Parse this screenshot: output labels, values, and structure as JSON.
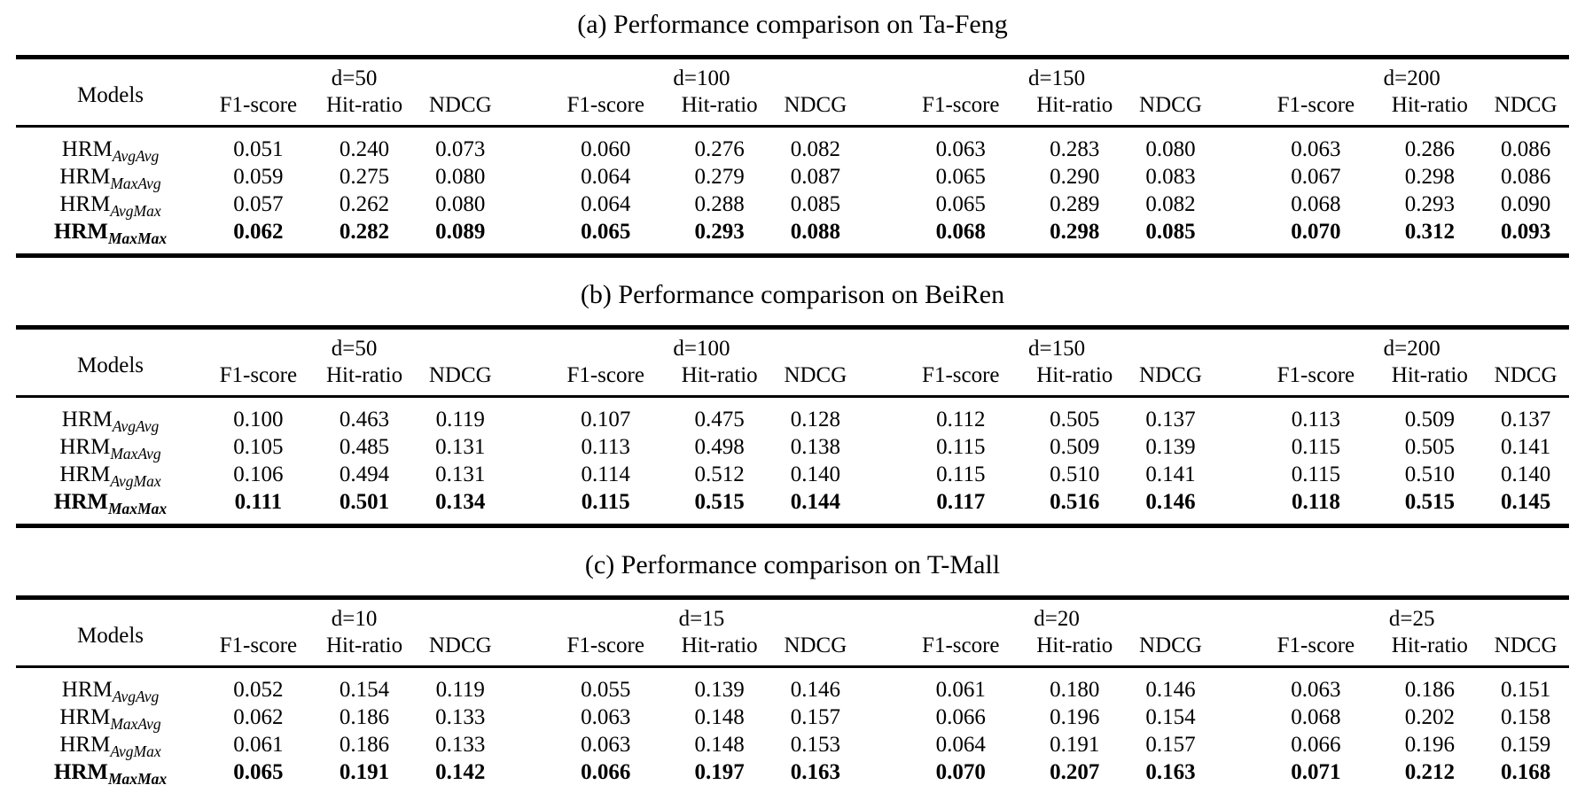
{
  "page": {
    "background": "#ffffff",
    "text_color": "#000000"
  },
  "tables": [
    {
      "title": "(a) Performance comparison on Ta-Feng",
      "models_header": "Models",
      "groups": [
        "d=50",
        "d=100",
        "d=150",
        "d=200"
      ],
      "metrics": [
        "F1-score",
        "Hit-ratio",
        "NDCG"
      ],
      "rows": [
        {
          "model_base": "HRM",
          "model_sub": "AvgAvg",
          "bold": false,
          "values": [
            "0.051",
            "0.240",
            "0.073",
            "0.060",
            "0.276",
            "0.082",
            "0.063",
            "0.283",
            "0.080",
            "0.063",
            "0.286",
            "0.086"
          ]
        },
        {
          "model_base": "HRM",
          "model_sub": "MaxAvg",
          "bold": false,
          "values": [
            "0.059",
            "0.275",
            "0.080",
            "0.064",
            "0.279",
            "0.087",
            "0.065",
            "0.290",
            "0.083",
            "0.067",
            "0.298",
            "0.086"
          ]
        },
        {
          "model_base": "HRM",
          "model_sub": "AvgMax",
          "bold": false,
          "values": [
            "0.057",
            "0.262",
            "0.080",
            "0.064",
            "0.288",
            "0.085",
            "0.065",
            "0.289",
            "0.082",
            "0.068",
            "0.293",
            "0.090"
          ]
        },
        {
          "model_base": "HRM",
          "model_sub": "MaxMax",
          "bold": true,
          "values": [
            "0.062",
            "0.282",
            "0.089",
            "0.065",
            "0.293",
            "0.088",
            "0.068",
            "0.298",
            "0.085",
            "0.070",
            "0.312",
            "0.093"
          ]
        }
      ]
    },
    {
      "title": "(b) Performance comparison on BeiRen",
      "models_header": "Models",
      "groups": [
        "d=50",
        "d=100",
        "d=150",
        "d=200"
      ],
      "metrics": [
        "F1-score",
        "Hit-ratio",
        "NDCG"
      ],
      "rows": [
        {
          "model_base": "HRM",
          "model_sub": "AvgAvg",
          "bold": false,
          "values": [
            "0.100",
            "0.463",
            "0.119",
            "0.107",
            "0.475",
            "0.128",
            "0.112",
            "0.505",
            "0.137",
            "0.113",
            "0.509",
            "0.137"
          ]
        },
        {
          "model_base": "HRM",
          "model_sub": "MaxAvg",
          "bold": false,
          "values": [
            "0.105",
            "0.485",
            "0.131",
            "0.113",
            "0.498",
            "0.138",
            "0.115",
            "0.509",
            "0.139",
            "0.115",
            "0.505",
            "0.141"
          ]
        },
        {
          "model_base": "HRM",
          "model_sub": "AvgMax",
          "bold": false,
          "values": [
            "0.106",
            "0.494",
            "0.131",
            "0.114",
            "0.512",
            "0.140",
            "0.115",
            "0.510",
            "0.141",
            "0.115",
            "0.510",
            "0.140"
          ]
        },
        {
          "model_base": "HRM",
          "model_sub": "MaxMax",
          "bold": true,
          "values": [
            "0.111",
            "0.501",
            "0.134",
            "0.115",
            "0.515",
            "0.144",
            "0.117",
            "0.516",
            "0.146",
            "0.118",
            "0.515",
            "0.145"
          ]
        }
      ]
    },
    {
      "title": "(c) Performance comparison on T-Mall",
      "models_header": "Models",
      "groups": [
        "d=10",
        "d=15",
        "d=20",
        "d=25"
      ],
      "metrics": [
        "F1-score",
        "Hit-ratio",
        "NDCG"
      ],
      "rows": [
        {
          "model_base": "HRM",
          "model_sub": "AvgAvg",
          "bold": false,
          "values": [
            "0.052",
            "0.154",
            "0.119",
            "0.055",
            "0.139",
            "0.146",
            "0.061",
            "0.180",
            "0.146",
            "0.063",
            "0.186",
            "0.151"
          ]
        },
        {
          "model_base": "HRM",
          "model_sub": "MaxAvg",
          "bold": false,
          "values": [
            "0.062",
            "0.186",
            "0.133",
            "0.063",
            "0.148",
            "0.157",
            "0.066",
            "0.196",
            "0.154",
            "0.068",
            "0.202",
            "0.158"
          ]
        },
        {
          "model_base": "HRM",
          "model_sub": "AvgMax",
          "bold": false,
          "values": [
            "0.061",
            "0.186",
            "0.133",
            "0.063",
            "0.148",
            "0.153",
            "0.064",
            "0.191",
            "0.157",
            "0.066",
            "0.196",
            "0.159"
          ]
        },
        {
          "model_base": "HRM",
          "model_sub": "MaxMax",
          "bold": true,
          "values": [
            "0.065",
            "0.191",
            "0.142",
            "0.066",
            "0.197",
            "0.163",
            "0.070",
            "0.207",
            "0.163",
            "0.071",
            "0.212",
            "0.168"
          ]
        }
      ]
    }
  ]
}
